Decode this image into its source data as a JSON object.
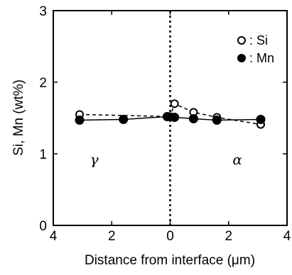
{
  "chart_data": {
    "type": "line",
    "title": "",
    "xlabel": "Distance from interface (μm)",
    "ylabel": "Si, Mn (wt%)",
    "x_direction": "distance measured from interface to both sides (left: γ side, right: α side)",
    "xlim": [
      -4,
      4
    ],
    "ylim": [
      0,
      3
    ],
    "x_ticks": [
      {
        "value": -4,
        "label": "4"
      },
      {
        "value": -2,
        "label": "2"
      },
      {
        "value": 0,
        "label": "0"
      },
      {
        "value": 2,
        "label": "2"
      },
      {
        "value": 4,
        "label": "4"
      }
    ],
    "y_ticks": [
      {
        "value": 0,
        "label": "0"
      },
      {
        "value": 1,
        "label": "1"
      },
      {
        "value": 2,
        "label": "2"
      },
      {
        "value": 3,
        "label": "3"
      }
    ],
    "grid": false,
    "legend_position": "top-right",
    "series": [
      {
        "name": ": Si",
        "marker": "open-circle",
        "line_style": "dashed",
        "x": [
          -3.1,
          0.0,
          0.15,
          0.8,
          1.6,
          3.1
        ],
        "y": [
          1.55,
          1.52,
          1.7,
          1.58,
          1.51,
          1.41
        ]
      },
      {
        "name": ": Mn",
        "marker": "filled-circle",
        "line_style": "solid",
        "x": [
          -3.1,
          -1.6,
          -0.1,
          0.15,
          0.8,
          1.6,
          3.1
        ],
        "y": [
          1.47,
          1.48,
          1.52,
          1.51,
          1.49,
          1.47,
          1.48
        ]
      }
    ],
    "annotations": [
      {
        "text": "γ",
        "x": -2.6,
        "y": 0.85
      },
      {
        "text": "α",
        "x": 2.3,
        "y": 0.85
      }
    ],
    "interface_line": {
      "x": 0,
      "style": "dotted"
    }
  },
  "colors": {
    "ink": "#000000",
    "background": "#ffffff"
  }
}
